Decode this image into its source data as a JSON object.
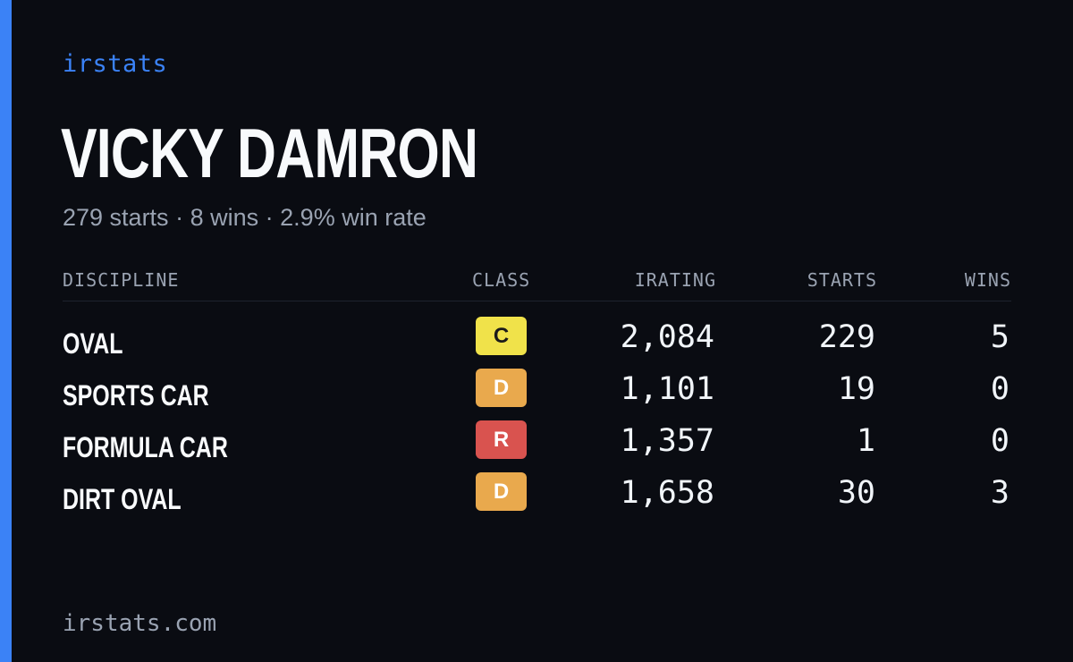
{
  "brand": "irstats",
  "driver": {
    "name": "VICKY DAMRON",
    "starts_text": "279 starts",
    "wins_text": "8 wins",
    "winrate_text": "2.9% win rate",
    "separator": "·"
  },
  "table": {
    "headers": {
      "discipline": "DISCIPLINE",
      "class": "CLASS",
      "irating": "IRATING",
      "starts": "STARTS",
      "wins": "WINS"
    },
    "rows": [
      {
        "discipline": "OVAL",
        "class": "C",
        "class_color": "#f0e24a",
        "class_text_color": "#1a1a1a",
        "irating": "2,084",
        "starts": "229",
        "wins": "5"
      },
      {
        "discipline": "SPORTS CAR",
        "class": "D",
        "class_color": "#e9a94d",
        "class_text_color": "#ffffff",
        "irating": "1,101",
        "starts": "19",
        "wins": "0"
      },
      {
        "discipline": "FORMULA CAR",
        "class": "R",
        "class_color": "#d9534f",
        "class_text_color": "#ffffff",
        "irating": "1,357",
        "starts": "1",
        "wins": "0"
      },
      {
        "discipline": "DIRT OVAL",
        "class": "D",
        "class_color": "#e9a94d",
        "class_text_color": "#ffffff",
        "irating": "1,658",
        "starts": "30",
        "wins": "3"
      }
    ]
  },
  "footer": {
    "url": "irstats.com"
  },
  "colors": {
    "accent": "#3b82f6",
    "background": "#0a0c12"
  }
}
